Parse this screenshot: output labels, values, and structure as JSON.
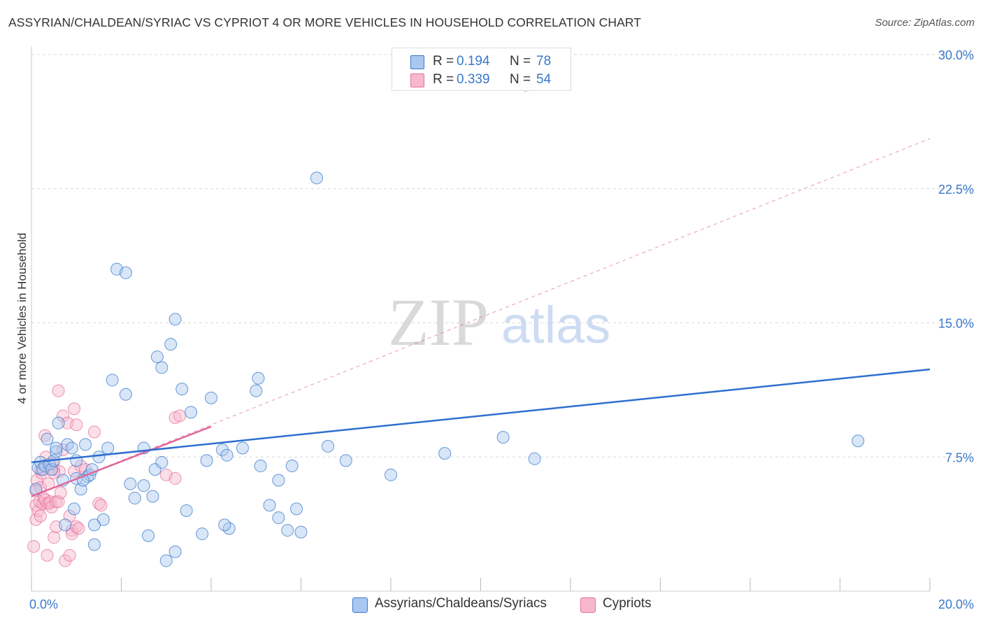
{
  "title": "ASSYRIAN/CHALDEAN/SYRIAC VS CYPRIOT 4 OR MORE VEHICLES IN HOUSEHOLD CORRELATION CHART",
  "source": "Source: ZipAtlas.com",
  "watermark": {
    "zip": "ZIP",
    "atlas": "atlas"
  },
  "colors": {
    "blue": "#3a78c9",
    "blue_fill": "#a9c7f0",
    "blue_line": "#2f6fcf",
    "pink": "#e6709a",
    "pink_fill": "#f7b8cc",
    "pink_line": "#e0669a",
    "grid": "#d9d9d9",
    "axis_text": "#3a78c9"
  },
  "legend_top": [
    {
      "r_label": "R =",
      "r_value": "0.194",
      "n_label": "N =",
      "n_value": "78",
      "color": "blue"
    },
    {
      "r_label": "R =",
      "r_value": "0.339",
      "n_label": "N =",
      "n_value": "54",
      "color": "pink"
    }
  ],
  "legend_bottom": [
    {
      "label": "Assyrians/Chaldeans/Syriacs",
      "color": "blue"
    },
    {
      "label": "Cypriots",
      "color": "pink"
    }
  ],
  "chart_data": {
    "type": "scatter",
    "title": "ASSYRIAN/CHALDEAN/SYRIAC VS CYPRIOT 4 OR MORE VEHICLES IN HOUSEHOLD CORRELATION CHART",
    "xlabel": "",
    "ylabel": "4 or more Vehicles in Household",
    "xlim": [
      0,
      20
    ],
    "ylim": [
      0,
      30
    ],
    "x_ticks": [
      0,
      2,
      4,
      6,
      8,
      10,
      12,
      14,
      16,
      18,
      20
    ],
    "x_tick_labels": [
      {
        "value": 0,
        "label": "0.0%"
      },
      {
        "value": 20,
        "label": "20.0%"
      }
    ],
    "y_ticks": [
      {
        "value": 7.5,
        "label": "7.5%"
      },
      {
        "value": 15,
        "label": "15.0%"
      },
      {
        "value": 22.5,
        "label": "22.5%"
      },
      {
        "value": 30,
        "label": "30.0%"
      }
    ],
    "series": [
      {
        "name": "Assyrians/Chaldeans/Syriacs",
        "color": "blue",
        "R": 0.194,
        "N": 78,
        "trend": {
          "x": [
            0,
            20
          ],
          "y": [
            7.2,
            12.4
          ],
          "style": "solid"
        },
        "points": [
          [
            0.1,
            5.7
          ],
          [
            0.15,
            6.9
          ],
          [
            0.2,
            7.2
          ],
          [
            0.25,
            6.8
          ],
          [
            0.3,
            7.0
          ],
          [
            0.35,
            8.5
          ],
          [
            0.4,
            7.1
          ],
          [
            0.45,
            6.8
          ],
          [
            0.5,
            7.3
          ],
          [
            0.55,
            7.8
          ],
          [
            0.6,
            9.4
          ],
          [
            0.7,
            6.2
          ],
          [
            0.8,
            8.2
          ],
          [
            0.9,
            8.0
          ],
          [
            1.0,
            7.3
          ],
          [
            1.1,
            5.7
          ],
          [
            1.2,
            8.2
          ],
          [
            1.25,
            6.4
          ],
          [
            1.3,
            6.5
          ],
          [
            1.35,
            6.8
          ],
          [
            1.5,
            7.5
          ],
          [
            1.7,
            8.0
          ],
          [
            1.8,
            11.8
          ],
          [
            1.9,
            18.0
          ],
          [
            2.1,
            17.8
          ],
          [
            2.1,
            11.0
          ],
          [
            2.3,
            5.2
          ],
          [
            2.5,
            5.9
          ],
          [
            2.5,
            8.0
          ],
          [
            2.6,
            3.1
          ],
          [
            2.7,
            5.3
          ],
          [
            2.75,
            6.8
          ],
          [
            2.8,
            13.1
          ],
          [
            2.9,
            7.2
          ],
          [
            2.9,
            12.5
          ],
          [
            3.0,
            1.7
          ],
          [
            3.1,
            13.8
          ],
          [
            3.2,
            2.2
          ],
          [
            3.2,
            15.2
          ],
          [
            3.35,
            11.3
          ],
          [
            3.45,
            4.5
          ],
          [
            3.55,
            10.0
          ],
          [
            3.8,
            3.2
          ],
          [
            3.9,
            7.3
          ],
          [
            4.0,
            10.8
          ],
          [
            4.25,
            7.9
          ],
          [
            4.35,
            7.6
          ],
          [
            4.4,
            3.5
          ],
          [
            4.7,
            8.0
          ],
          [
            5.0,
            11.2
          ],
          [
            5.05,
            11.9
          ],
          [
            5.1,
            7.0
          ],
          [
            5.5,
            6.2
          ],
          [
            5.8,
            7.0
          ],
          [
            6.35,
            23.1
          ],
          [
            6.6,
            8.1
          ],
          [
            7.0,
            7.3
          ],
          [
            8.0,
            6.5
          ],
          [
            9.2,
            7.7
          ],
          [
            10.5,
            8.6
          ],
          [
            11.0,
            28.3
          ],
          [
            11.2,
            7.4
          ],
          [
            18.4,
            8.4
          ],
          [
            1.0,
            6.3
          ],
          [
            1.4,
            2.6
          ],
          [
            1.6,
            4.0
          ],
          [
            1.4,
            3.7
          ],
          [
            0.75,
            3.7
          ],
          [
            0.95,
            4.6
          ],
          [
            2.2,
            6.0
          ],
          [
            1.15,
            6.2
          ],
          [
            0.55,
            8.0
          ],
          [
            4.3,
            3.7
          ],
          [
            5.5,
            4.1
          ],
          [
            5.7,
            3.4
          ],
          [
            5.9,
            4.6
          ],
          [
            6.0,
            3.3
          ],
          [
            5.3,
            4.8
          ]
        ]
      },
      {
        "name": "Cypriots",
        "color": "pink",
        "R": 0.339,
        "N": 54,
        "trend": {
          "x": [
            0,
            4.0
          ],
          "y": [
            5.3,
            9.2
          ],
          "style": "solid"
        },
        "trend_extended": {
          "x": [
            0,
            20
          ],
          "y": [
            5.3,
            25.3
          ],
          "style": "dashed"
        },
        "points": [
          [
            0.05,
            2.5
          ],
          [
            0.1,
            4.0
          ],
          [
            0.1,
            4.8
          ],
          [
            0.1,
            5.6
          ],
          [
            0.12,
            6.2
          ],
          [
            0.15,
            4.5
          ],
          [
            0.18,
            5.0
          ],
          [
            0.2,
            4.2
          ],
          [
            0.2,
            5.8
          ],
          [
            0.22,
            6.6
          ],
          [
            0.25,
            4.9
          ],
          [
            0.28,
            5.2
          ],
          [
            0.3,
            5.1
          ],
          [
            0.3,
            8.7
          ],
          [
            0.32,
            7.5
          ],
          [
            0.35,
            4.9
          ],
          [
            0.35,
            2.0
          ],
          [
            0.38,
            6.0
          ],
          [
            0.4,
            4.9
          ],
          [
            0.42,
            5.0
          ],
          [
            0.45,
            4.7
          ],
          [
            0.48,
            7.1
          ],
          [
            0.5,
            6.8
          ],
          [
            0.5,
            3.0
          ],
          [
            0.55,
            5.0
          ],
          [
            0.55,
            3.6
          ],
          [
            0.6,
            5.0
          ],
          [
            0.62,
            6.7
          ],
          [
            0.65,
            5.5
          ],
          [
            0.6,
            11.2
          ],
          [
            0.7,
            9.8
          ],
          [
            0.7,
            7.9
          ],
          [
            0.75,
            1.7
          ],
          [
            0.8,
            9.4
          ],
          [
            0.85,
            2.0
          ],
          [
            0.85,
            4.2
          ],
          [
            0.9,
            3.4
          ],
          [
            0.9,
            3.2
          ],
          [
            0.95,
            6.7
          ],
          [
            1.0,
            9.3
          ],
          [
            1.0,
            3.6
          ],
          [
            0.95,
            10.2
          ],
          [
            1.05,
            3.5
          ],
          [
            1.1,
            7.0
          ],
          [
            1.2,
            6.8
          ],
          [
            1.4,
            8.9
          ],
          [
            1.5,
            4.9
          ],
          [
            1.55,
            4.8
          ],
          [
            3.0,
            6.5
          ],
          [
            3.2,
            9.7
          ],
          [
            3.2,
            6.3
          ],
          [
            3.3,
            9.8
          ],
          [
            0.5,
            6.6
          ],
          [
            0.2,
            6.8
          ]
        ]
      }
    ]
  }
}
